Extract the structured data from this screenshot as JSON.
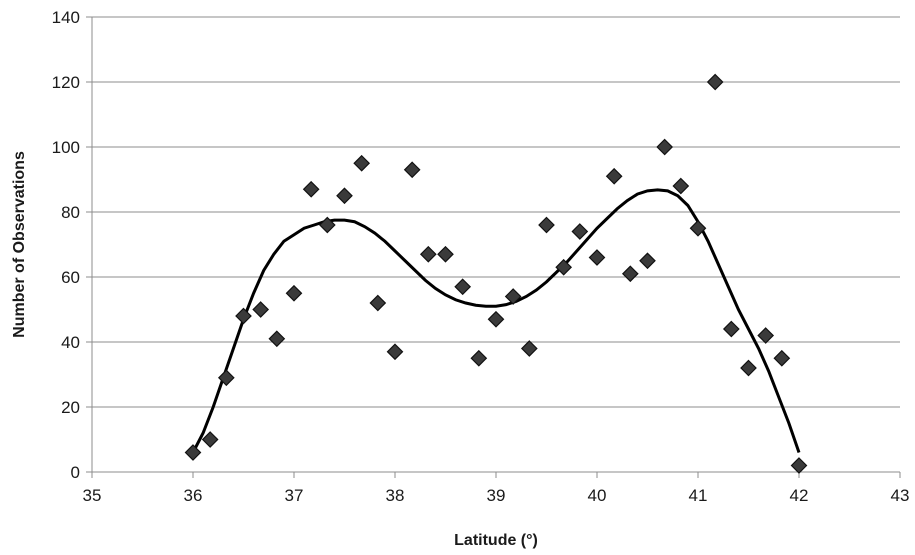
{
  "chart_data": {
    "type": "scatter",
    "title": "",
    "xlabel": "Latitude (°)",
    "ylabel": "Number of Observations",
    "xlim": [
      35,
      43
    ],
    "ylim": [
      0,
      140
    ],
    "xticks": [
      35,
      36,
      37,
      38,
      39,
      40,
      41,
      42,
      43
    ],
    "yticks": [
      0,
      20,
      40,
      60,
      80,
      100,
      120,
      140
    ],
    "grid": "horizontal",
    "legend": "none",
    "colors": {
      "marker": "#3a3a3a",
      "marker_edge": "#111111",
      "trend_line": "#000000",
      "grid": "#8c8c8c"
    },
    "series": [
      {
        "kind": "points",
        "marker": "diamond",
        "x": [
          36.0,
          36.17,
          36.33,
          36.5,
          36.67,
          36.83,
          37.0,
          37.17,
          37.33,
          37.5,
          37.67,
          37.83,
          38.0,
          38.17,
          38.33,
          38.5,
          38.67,
          38.83,
          39.0,
          39.17,
          39.33,
          39.5,
          39.67,
          39.83,
          40.0,
          40.17,
          40.33,
          40.5,
          40.67,
          40.83,
          41.0,
          41.17,
          41.33,
          41.5,
          41.67,
          41.83,
          42.0
        ],
        "y": [
          6,
          10,
          29,
          48,
          50,
          41,
          55,
          87,
          76,
          85,
          95,
          52,
          37,
          93,
          67,
          67,
          57,
          35,
          47,
          54,
          38,
          76,
          63,
          74,
          66,
          91,
          61,
          65,
          100,
          88,
          75,
          120,
          44,
          32,
          42,
          35,
          2
        ]
      },
      {
        "kind": "trendline",
        "x": [
          36.0,
          36.1,
          36.2,
          36.3,
          36.4,
          36.5,
          36.6,
          36.7,
          36.8,
          36.9,
          37.0,
          37.1,
          37.2,
          37.3,
          37.4,
          37.5,
          37.6,
          37.7,
          37.8,
          37.9,
          38.0,
          38.1,
          38.2,
          38.3,
          38.4,
          38.5,
          38.6,
          38.7,
          38.8,
          38.9,
          39.0,
          39.1,
          39.2,
          39.3,
          39.4,
          39.5,
          39.6,
          39.7,
          39.8,
          39.9,
          40.0,
          40.1,
          40.2,
          40.3,
          40.4,
          40.5,
          40.6,
          40.7,
          40.8,
          40.9,
          41.0,
          41.1,
          41.2,
          41.3,
          41.4,
          41.5,
          41.6,
          41.7,
          41.8,
          41.9,
          42.0
        ],
        "y": [
          6,
          12,
          20,
          29,
          38,
          47,
          55,
          62,
          67,
          71,
          73,
          75,
          76,
          77,
          77.5,
          77.5,
          77,
          75.5,
          73.5,
          71,
          68,
          65,
          62,
          59,
          56.5,
          54.5,
          53,
          52,
          51.3,
          51,
          51,
          51.5,
          52.5,
          54,
          56,
          58.5,
          61.5,
          64.5,
          68,
          71.5,
          75,
          78,
          81,
          83.5,
          85.5,
          86.5,
          86.8,
          86.5,
          85,
          82,
          77,
          71,
          64,
          57,
          50,
          44,
          38,
          31,
          23,
          15,
          6
        ]
      }
    ]
  }
}
